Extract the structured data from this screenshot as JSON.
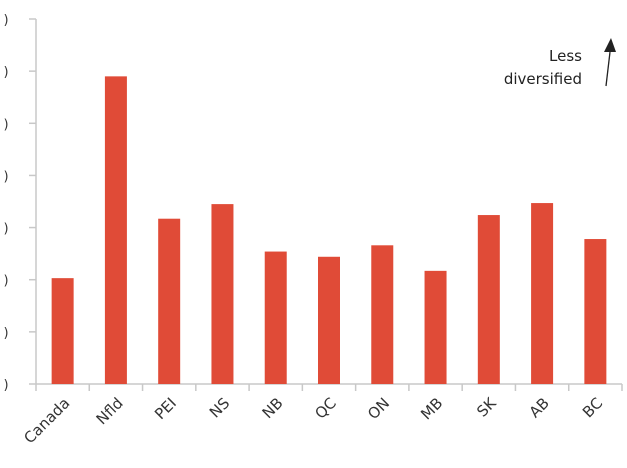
{
  "chart_data": {
    "type": "bar",
    "title": "",
    "xlabel": "",
    "ylabel": "",
    "categories": [
      "Canada",
      "Nfld",
      "PEI",
      "NS",
      "NB",
      "QC",
      "ON",
      "MB",
      "SK",
      "AB",
      "BC"
    ],
    "values": [
      2.03,
      5.9,
      3.17,
      3.45,
      2.54,
      2.44,
      2.66,
      2.17,
      3.24,
      3.47,
      2.78
    ],
    "ylim": [
      0,
      7
    ],
    "yticks": [
      0,
      1,
      2,
      3,
      4,
      5,
      6,
      7
    ],
    "ytick_labels": [
      ")",
      ")",
      ")",
      ")",
      ")",
      ")",
      ")",
      ")"
    ],
    "grid": false,
    "legend": "none",
    "bar_color": "#e04b37",
    "axis_color": "#c8c8c8",
    "annotation": {
      "lines": [
        "Less",
        "diversified"
      ],
      "arrow": "up"
    }
  }
}
